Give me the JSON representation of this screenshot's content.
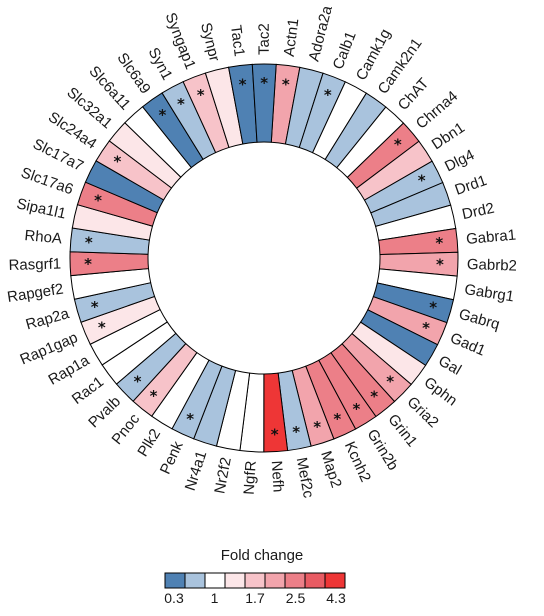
{
  "chart_data": {
    "type": "radial-heatmap",
    "colorbar": {
      "title": "Fold change",
      "tick_labels": [
        "0.3",
        "1",
        "1.7",
        "2.5",
        "4.3"
      ],
      "colors": [
        "#4f81b3",
        "#a9c3dd",
        "#ffffff",
        "#fce6e8",
        "#f7c3c9",
        "#f2a4ac",
        "#ec7f88",
        "#e85b63",
        "#ee3636"
      ]
    },
    "significance_marker": "*",
    "genes": [
      {
        "name": "Actn1",
        "color": "#f2a4ac",
        "significant": true
      },
      {
        "name": "Adora2a",
        "color": "#a9c3dd",
        "significant": false
      },
      {
        "name": "Calb1",
        "color": "#a9c3dd",
        "significant": true
      },
      {
        "name": "Camk1g",
        "color": "#ffffff",
        "significant": false
      },
      {
        "name": "Camk2n1",
        "color": "#a9c3dd",
        "significant": false
      },
      {
        "name": "ChAT",
        "color": "#ffffff",
        "significant": false
      },
      {
        "name": "Chrna4",
        "color": "#ec7f88",
        "significant": true
      },
      {
        "name": "Dbn1",
        "color": "#f7c3c9",
        "significant": false
      },
      {
        "name": "Dlg4",
        "color": "#a9c3dd",
        "significant": true
      },
      {
        "name": "Drd1",
        "color": "#a9c3dd",
        "significant": false
      },
      {
        "name": "Drd2",
        "color": "#ffffff",
        "significant": false
      },
      {
        "name": "Gabra1",
        "color": "#ec7f88",
        "significant": true
      },
      {
        "name": "Gabrb2",
        "color": "#f2a4ac",
        "significant": true
      },
      {
        "name": "Gabrg1",
        "color": "#ffffff",
        "significant": false
      },
      {
        "name": "Gabrq",
        "color": "#4f81b3",
        "significant": true
      },
      {
        "name": "Gad1",
        "color": "#f2a4ac",
        "significant": true
      },
      {
        "name": "Gal",
        "color": "#4f81b3",
        "significant": false
      },
      {
        "name": "Gphn",
        "color": "#fce6e8",
        "significant": false
      },
      {
        "name": "Gria2",
        "color": "#f2a4ac",
        "significant": true
      },
      {
        "name": "Grin1",
        "color": "#ec7f88",
        "significant": true
      },
      {
        "name": "Grin2b",
        "color": "#ec7f88",
        "significant": true
      },
      {
        "name": "Kcnh2",
        "color": "#ec7f88",
        "significant": true
      },
      {
        "name": "Map2",
        "color": "#f2a4ac",
        "significant": true
      },
      {
        "name": "Mef2c",
        "color": "#a9c3dd",
        "significant": true
      },
      {
        "name": "Nefh",
        "color": "#ee3636",
        "significant": true
      },
      {
        "name": "NgfR",
        "color": "#ffffff",
        "significant": false
      },
      {
        "name": "Nr2f2",
        "color": "#ffffff",
        "significant": false
      },
      {
        "name": "Nr4a1",
        "color": "#a9c3dd",
        "significant": false
      },
      {
        "name": "Penk",
        "color": "#a9c3dd",
        "significant": true
      },
      {
        "name": "Plk2",
        "color": "#ffffff",
        "significant": false
      },
      {
        "name": "Pnoc",
        "color": "#f7c3c9",
        "significant": true
      },
      {
        "name": "Pvalb",
        "color": "#a9c3dd",
        "significant": true
      },
      {
        "name": "Rac1",
        "color": "#ffffff",
        "significant": false
      },
      {
        "name": "Rap1a",
        "color": "#ffffff",
        "significant": false
      },
      {
        "name": "Rap1gap",
        "color": "#fce6e8",
        "significant": true
      },
      {
        "name": "Rap2a",
        "color": "#a9c3dd",
        "significant": true
      },
      {
        "name": "Rapgef2",
        "color": "#ffffff",
        "significant": false
      },
      {
        "name": "Rasgrf1",
        "color": "#ec7f88",
        "significant": true
      },
      {
        "name": "RhoA",
        "color": "#a9c3dd",
        "significant": true
      },
      {
        "name": "Sipa1l1",
        "color": "#fce6e8",
        "significant": false
      },
      {
        "name": "Slc17a6",
        "color": "#ec7f88",
        "significant": true
      },
      {
        "name": "Slc17a7",
        "color": "#4f81b3",
        "significant": false
      },
      {
        "name": "Slc24a4",
        "color": "#f7c3c9",
        "significant": true
      },
      {
        "name": "Slc32a1",
        "color": "#fce6e8",
        "significant": false
      },
      {
        "name": "Slc6a11",
        "color": "#ffffff",
        "significant": false
      },
      {
        "name": "Slc6a9",
        "color": "#4f81b3",
        "significant": true
      },
      {
        "name": "Syn1",
        "color": "#a9c3dd",
        "significant": true
      },
      {
        "name": "Syngap1",
        "color": "#f7c3c9",
        "significant": true
      },
      {
        "name": "Synpr",
        "color": "#fce6e8",
        "significant": false
      },
      {
        "name": "Tac1",
        "color": "#4f81b3",
        "significant": true
      },
      {
        "name": "Tac2",
        "color": "#4f81b3",
        "significant": true
      }
    ]
  }
}
